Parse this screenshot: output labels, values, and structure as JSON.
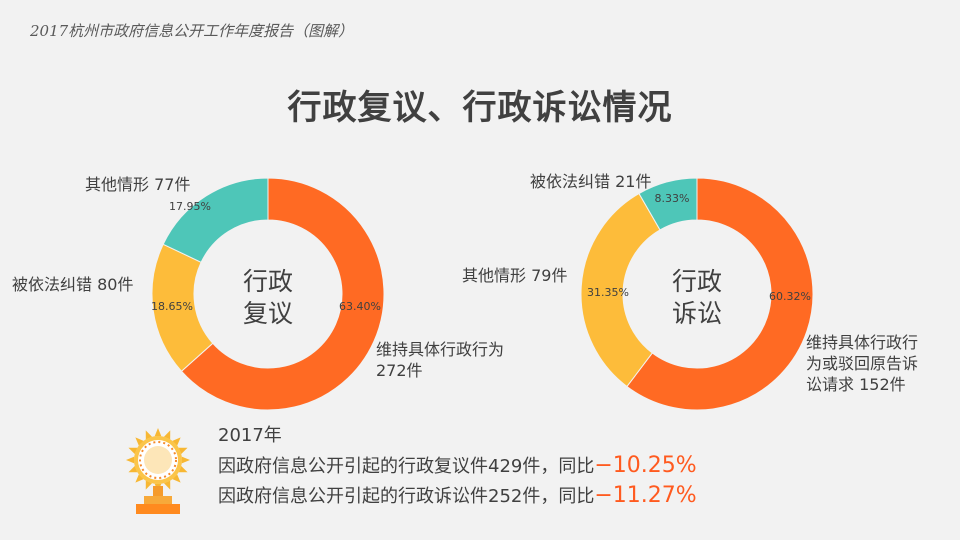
{
  "header": {
    "title": "2017杭州市政府信息公开工作年度报告（图解）"
  },
  "slide_title": "行政复议、行政诉讼情况",
  "colors": {
    "orange": "#ff6a23",
    "yellow": "#fdbc3a",
    "teal": "#4ec6b8",
    "accent_red": "#ff5a1f"
  },
  "chart_data": [
    {
      "type": "pie",
      "style": "donut",
      "center_label": [
        "行政",
        "复议"
      ],
      "slices": [
        {
          "label": "维持具体行政行为",
          "label_lines": [
            "维持具体行政行为",
            "272件"
          ],
          "value": 272,
          "percent_label": "63.40%",
          "color": "#ff6a23"
        },
        {
          "label": "被依法纠错",
          "label_lines": [
            "被依法纠错  80件"
          ],
          "value": 80,
          "percent_label": "18.65%",
          "color": "#fdbc3a"
        },
        {
          "label": "其他情形",
          "label_lines": [
            "其他情形  77件"
          ],
          "value": 77,
          "percent_label": "17.95%",
          "color": "#4ec6b8"
        }
      ]
    },
    {
      "type": "pie",
      "style": "donut",
      "center_label": [
        "行政",
        "诉讼"
      ],
      "slices": [
        {
          "label": "维持具体行政行为或驳回原告诉讼请求",
          "label_lines": [
            "维持具体行政行",
            "为或驳回原告诉",
            "讼请求  152件"
          ],
          "value": 152,
          "percent_label": "60.32%",
          "color": "#ff6a23"
        },
        {
          "label": "其他情形",
          "label_lines": [
            "其他情形  79件"
          ],
          "value": 79,
          "percent_label": "31.35%",
          "color": "#fdbc3a"
        },
        {
          "label": "被依法纠错",
          "label_lines": [
            "被依法纠错  21件"
          ],
          "value": 21,
          "percent_label": "8.33%",
          "color": "#4ec6b8"
        }
      ]
    }
  ],
  "footer": {
    "year": "2017年",
    "line1": "因政府信息公开引起的行政复议件429件，同比",
    "line1_change": "−10.25%",
    "line2": "因政府信息公开引起的行政诉讼件252件，同比",
    "line2_change": "−11.27%"
  }
}
